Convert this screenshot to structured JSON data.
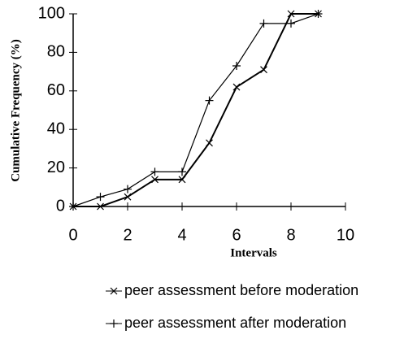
{
  "chart_data": {
    "type": "line",
    "xlabel": "Intervals",
    "ylabel": "Cumulative Frequency (%)",
    "x": [
      0,
      1,
      2,
      3,
      4,
      5,
      6,
      7,
      8,
      9
    ],
    "series": [
      {
        "name": "peer assessment before moderation",
        "color": "#000000",
        "marker": "x",
        "values": [
          0,
          0,
          5,
          14,
          14,
          33,
          62,
          71,
          100,
          100
        ]
      },
      {
        "name": "peer assessment after moderation",
        "color": "#000000",
        "marker": "+",
        "values": [
          0,
          5,
          9,
          18,
          18,
          55,
          73,
          95,
          95,
          100
        ]
      }
    ],
    "xlim": [
      0,
      10
    ],
    "xticks": [
      0,
      2,
      4,
      6,
      8,
      10
    ],
    "ylim": [
      0,
      100
    ],
    "yticks": [
      0,
      20,
      40,
      60,
      80,
      100
    ],
    "legend": "bottom",
    "grid": false
  }
}
